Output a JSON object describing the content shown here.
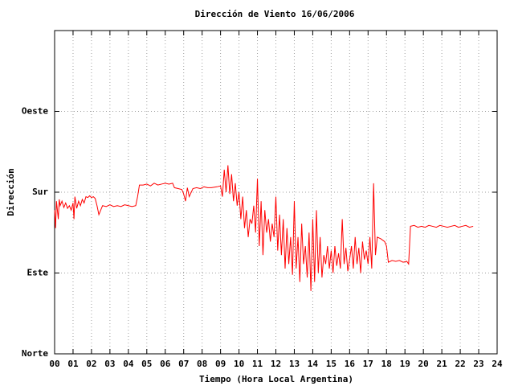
{
  "chart_data": {
    "type": "line",
    "title": "Dirección de Viento 16/06/2006",
    "x_label": "Tiempo (Hora Local Argentina)",
    "y_label": "Dirección",
    "color": "#ff0000",
    "grid": true,
    "xlim": [
      0,
      24
    ],
    "ylim": [
      0,
      360
    ],
    "xticks": [
      {
        "value": 0,
        "label": "00"
      },
      {
        "value": 1,
        "label": "01"
      },
      {
        "value": 2,
        "label": "02"
      },
      {
        "value": 3,
        "label": "03"
      },
      {
        "value": 4,
        "label": "04"
      },
      {
        "value": 5,
        "label": "05"
      },
      {
        "value": 6,
        "label": "06"
      },
      {
        "value": 7,
        "label": "07"
      },
      {
        "value": 8,
        "label": "08"
      },
      {
        "value": 9,
        "label": "09"
      },
      10,
      11,
      12,
      13,
      14,
      15,
      16,
      17,
      18,
      19,
      20,
      21,
      22,
      23,
      24
    ],
    "yticks": [
      {
        "value": 0,
        "label": "Norte"
      },
      {
        "value": 90,
        "label": "Este"
      },
      {
        "value": 180,
        "label": "Sur"
      },
      {
        "value": 270,
        "label": "Oeste"
      }
    ],
    "x": [
      0,
      0.05,
      0.1,
      0.2,
      0.25,
      0.3,
      0.4,
      0.5,
      0.6,
      0.7,
      0.8,
      0.9,
      1,
      1.05,
      1.1,
      1.2,
      1.3,
      1.4,
      1.5,
      1.6,
      1.7,
      1.8,
      1.9,
      2,
      2.1,
      2.2,
      2.3,
      2.4,
      2.5,
      2.6,
      2.8,
      3,
      3.2,
      3.4,
      3.6,
      3.8,
      4,
      4.2,
      4.4,
      4.5,
      4.6,
      4.8,
      5,
      5.2,
      5.4,
      5.6,
      5.8,
      6,
      6.2,
      6.4,
      6.5,
      6.7,
      6.9,
      7,
      7.1,
      7.2,
      7.3,
      7.5,
      7.7,
      7.9,
      8.1,
      8.3,
      8.5,
      8.8,
      9,
      9.1,
      9.2,
      9.3,
      9.4,
      9.5,
      9.6,
      9.7,
      9.8,
      9.9,
      10,
      10.1,
      10.2,
      10.3,
      10.4,
      10.5,
      10.6,
      10.7,
      10.8,
      10.9,
      11,
      11.1,
      11.2,
      11.3,
      11.4,
      11.5,
      11.6,
      11.7,
      11.8,
      11.9,
      12,
      12.1,
      12.2,
      12.3,
      12.4,
      12.5,
      12.6,
      12.7,
      12.8,
      12.9,
      13,
      13.1,
      13.2,
      13.3,
      13.4,
      13.5,
      13.6,
      13.7,
      13.8,
      13.9,
      14,
      14.1,
      14.2,
      14.3,
      14.4,
      14.5,
      14.6,
      14.7,
      14.8,
      14.9,
      15,
      15.1,
      15.2,
      15.3,
      15.4,
      15.5,
      15.6,
      15.7,
      15.8,
      15.9,
      16,
      16.1,
      16.2,
      16.3,
      16.4,
      16.5,
      16.6,
      16.7,
      16.8,
      16.9,
      17,
      17.1,
      17.2,
      17.3,
      17.4,
      17.5,
      17.7,
      17.9,
      18,
      18.1,
      18.3,
      18.5,
      18.7,
      18.9,
      19.1,
      19.2,
      19.3,
      19.5,
      19.7,
      19.9,
      20.1,
      20.3,
      20.5,
      20.7,
      20.9,
      21.1,
      21.3,
      21.5,
      21.7,
      21.9,
      22.1,
      22.3,
      22.5,
      22.7
    ],
    "values": [
      160,
      140,
      170,
      150,
      172,
      165,
      170,
      163,
      168,
      162,
      165,
      160,
      168,
      150,
      175,
      162,
      170,
      165,
      172,
      168,
      175,
      174,
      176,
      174,
      175,
      173,
      165,
      155,
      160,
      165,
      164,
      166,
      164,
      165,
      164,
      166,
      165,
      164,
      165,
      175,
      188,
      188,
      189,
      187,
      190,
      188,
      189,
      190,
      189,
      190,
      185,
      184,
      183,
      178,
      170,
      185,
      175,
      184,
      185,
      184,
      186,
      185,
      185,
      186,
      187,
      175,
      205,
      180,
      210,
      178,
      200,
      170,
      190,
      165,
      180,
      150,
      175,
      140,
      160,
      130,
      150,
      145,
      165,
      135,
      195,
      120,
      170,
      110,
      160,
      135,
      150,
      125,
      145,
      130,
      175,
      115,
      155,
      110,
      150,
      95,
      140,
      100,
      130,
      88,
      170,
      95,
      130,
      80,
      145,
      100,
      120,
      85,
      135,
      70,
      150,
      80,
      160,
      90,
      130,
      85,
      110,
      100,
      120,
      95,
      115,
      90,
      120,
      98,
      112,
      95,
      150,
      100,
      118,
      92,
      105,
      120,
      95,
      130,
      100,
      118,
      90,
      125,
      105,
      115,
      100,
      130,
      95,
      190,
      110,
      130,
      128,
      125,
      120,
      102,
      104,
      103,
      104,
      102,
      103,
      100,
      142,
      143,
      141,
      142,
      141,
      143,
      142,
      141,
      143,
      142,
      141,
      142,
      143,
      141,
      142,
      143,
      141,
      142
    ]
  }
}
